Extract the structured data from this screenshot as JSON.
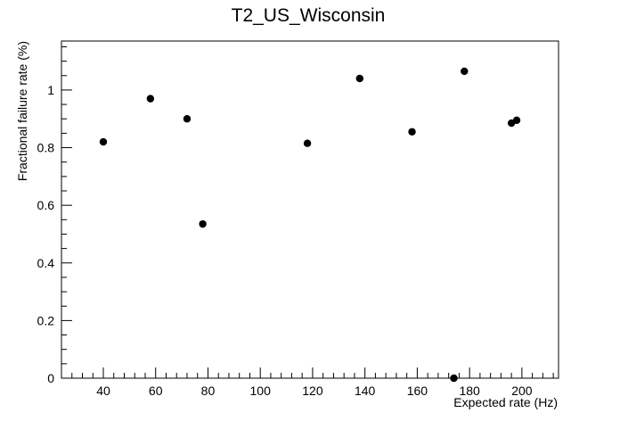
{
  "chart_data": {
    "type": "scatter",
    "title": "T2_US_Wisconsin",
    "xlabel": "Expected rate (Hz)",
    "ylabel": "Fractional failure rate (%)",
    "xlim": [
      24,
      214
    ],
    "ylim": [
      0,
      1.17
    ],
    "x_ticks": [
      40,
      60,
      80,
      100,
      120,
      140,
      160,
      180,
      200
    ],
    "x_tick_labels": [
      "40",
      "60",
      "80",
      "100",
      "120",
      "140",
      "160",
      "180",
      "200"
    ],
    "y_ticks": [
      0,
      0.2,
      0.4,
      0.6,
      0.8,
      1
    ],
    "y_tick_labels": [
      "0",
      "0.2",
      "0.4",
      "0.6",
      "0.8",
      "1"
    ],
    "x_minor_step": 4,
    "y_minor_step": 0.05,
    "grid": false,
    "legend": "none",
    "marker_color": "#000000",
    "series": [
      {
        "points": [
          {
            "x": 40,
            "y": 0.82
          },
          {
            "x": 58,
            "y": 0.97
          },
          {
            "x": 72,
            "y": 0.9
          },
          {
            "x": 78,
            "y": 0.535
          },
          {
            "x": 118,
            "y": 0.815
          },
          {
            "x": 138,
            "y": 1.04
          },
          {
            "x": 158,
            "y": 0.855
          },
          {
            "x": 174,
            "y": 0.0
          },
          {
            "x": 178,
            "y": 1.065
          },
          {
            "x": 196,
            "y": 0.885
          },
          {
            "x": 198,
            "y": 0.895
          }
        ]
      }
    ]
  }
}
